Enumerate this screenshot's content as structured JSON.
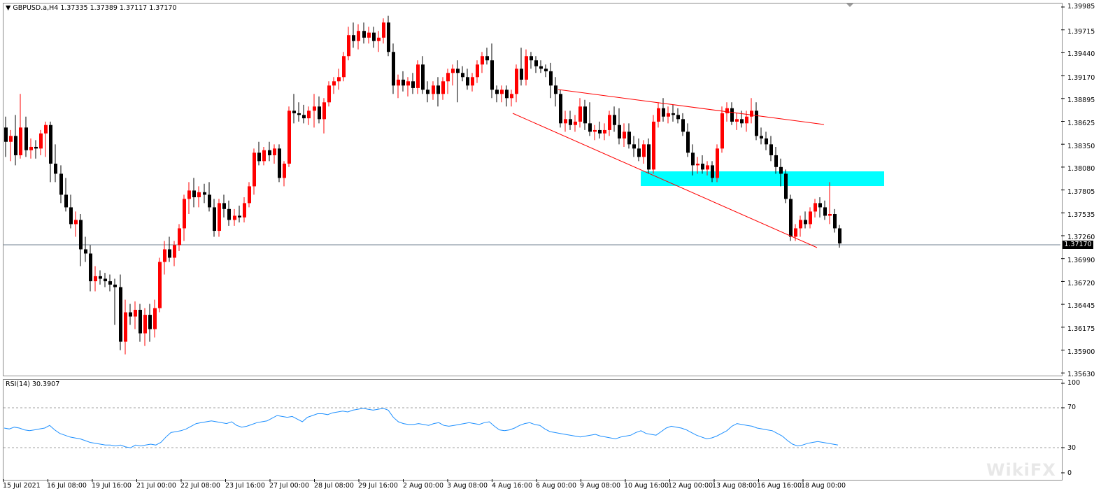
{
  "header": {
    "symbol_text": "GBPUSD.a,H4  1.37335 1.37389 1.37117 1.37170"
  },
  "rsi": {
    "label": "RSI(14) 30.3907",
    "levels": [
      "100",
      "70",
      "30",
      "0"
    ]
  },
  "price_axis": [
    "1.39985",
    "1.39715",
    "1.39440",
    "1.39170",
    "1.38895",
    "1.38625",
    "1.38350",
    "1.38080",
    "1.37805",
    "1.37535",
    "1.37260",
    "1.36990",
    "1.36720",
    "1.36445",
    "1.36175",
    "1.35900",
    "1.35630"
  ],
  "current_price": "1.37170",
  "time_axis": [
    "15 Jul 2021",
    "16 Jul 08:00",
    "19 Jul 16:00",
    "21 Jul 00:00",
    "22 Jul 08:00",
    "23 Jul 16:00",
    "27 Jul 00:00",
    "28 Jul 08:00",
    "29 Jul 16:00",
    "2 Aug 00:00",
    "3 Aug 08:00",
    "4 Aug 16:00",
    "6 Aug 00:00",
    "9 Aug 08:00",
    "10 Aug 16:00",
    "12 Aug 00:00",
    "13 Aug 08:00",
    "16 Aug 16:00",
    "18 Aug 00:00"
  ],
  "colors": {
    "bull": "#ff0000",
    "bear": "#000000",
    "rsi_line": "#1e90ff",
    "zone": "#00ffff",
    "trendline": "#ff0000",
    "price_line": "#708090"
  },
  "watermark": "WikiFX"
}
